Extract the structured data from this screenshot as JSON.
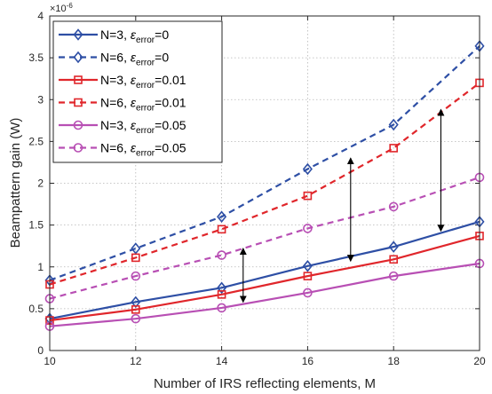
{
  "chart_data": {
    "type": "line",
    "xlabel": "Number of IRS reflecting elements, M",
    "ylabel": "Beampattern gain (W)",
    "y_multiplier": "×10",
    "y_multiplier_exp": "-6",
    "xlim": [
      10,
      20
    ],
    "ylim": [
      0,
      4
    ],
    "xticks": [
      10,
      12,
      14,
      16,
      18,
      20
    ],
    "xtick_labels": [
      "10",
      "12",
      "14",
      "16",
      "18",
      "20"
    ],
    "yticks": [
      0,
      0.5,
      1,
      1.5,
      2,
      2.5,
      3,
      3.5,
      4
    ],
    "ytick_labels": [
      "0",
      "0.5",
      "1",
      "1.5",
      "2",
      "2.5",
      "3",
      "3.5",
      "4"
    ],
    "grid": true,
    "legend_position": "top-left",
    "x": [
      10,
      12,
      14,
      16,
      18,
      20
    ],
    "series": [
      {
        "prefix": "N=3, ",
        "sym": "ε",
        "sub": "error",
        "suffix": "=0",
        "color": "#2E4FA5",
        "dash": "solid",
        "marker": "diamond",
        "values": [
          0.38,
          0.58,
          0.75,
          1.01,
          1.24,
          1.54
        ]
      },
      {
        "prefix": "N=6, ",
        "sym": "ε",
        "sub": "error",
        "suffix": "=0",
        "color": "#2E4FA5",
        "dash": "dashed",
        "marker": "diamond",
        "values": [
          0.84,
          1.22,
          1.6,
          2.17,
          2.7,
          3.64
        ]
      },
      {
        "prefix": "N=3, ",
        "sym": "ε",
        "sub": "error",
        "suffix": "=0.01",
        "color": "#E0262B",
        "dash": "solid",
        "marker": "square",
        "values": [
          0.36,
          0.49,
          0.67,
          0.89,
          1.09,
          1.37
        ]
      },
      {
        "prefix": "N=6, ",
        "sym": "ε",
        "sub": "error",
        "suffix": "=0.01",
        "color": "#E0262B",
        "dash": "dashed",
        "marker": "square",
        "values": [
          0.79,
          1.11,
          1.45,
          1.85,
          2.42,
          3.2
        ]
      },
      {
        "prefix": "N=3, ",
        "sym": "ε",
        "sub": "error",
        "suffix": "=0.05",
        "color": "#B84FB4",
        "dash": "solid",
        "marker": "circle",
        "values": [
          0.29,
          0.38,
          0.51,
          0.69,
          0.89,
          1.04
        ]
      },
      {
        "prefix": "N=6, ",
        "sym": "ε",
        "sub": "error",
        "suffix": "=0.05",
        "color": "#B84FB4",
        "dash": "dashed",
        "marker": "circle",
        "values": [
          0.62,
          0.89,
          1.14,
          1.46,
          1.72,
          2.07
        ]
      }
    ],
    "annotations": [
      {
        "type": "double-arrow",
        "x": 14.5,
        "y1": 0.58,
        "y2": 1.22
      },
      {
        "type": "double-arrow",
        "x": 17.0,
        "y1": 1.07,
        "y2": 2.3
      },
      {
        "type": "double-arrow",
        "x": 19.1,
        "y1": 1.43,
        "y2": 2.88
      }
    ]
  }
}
